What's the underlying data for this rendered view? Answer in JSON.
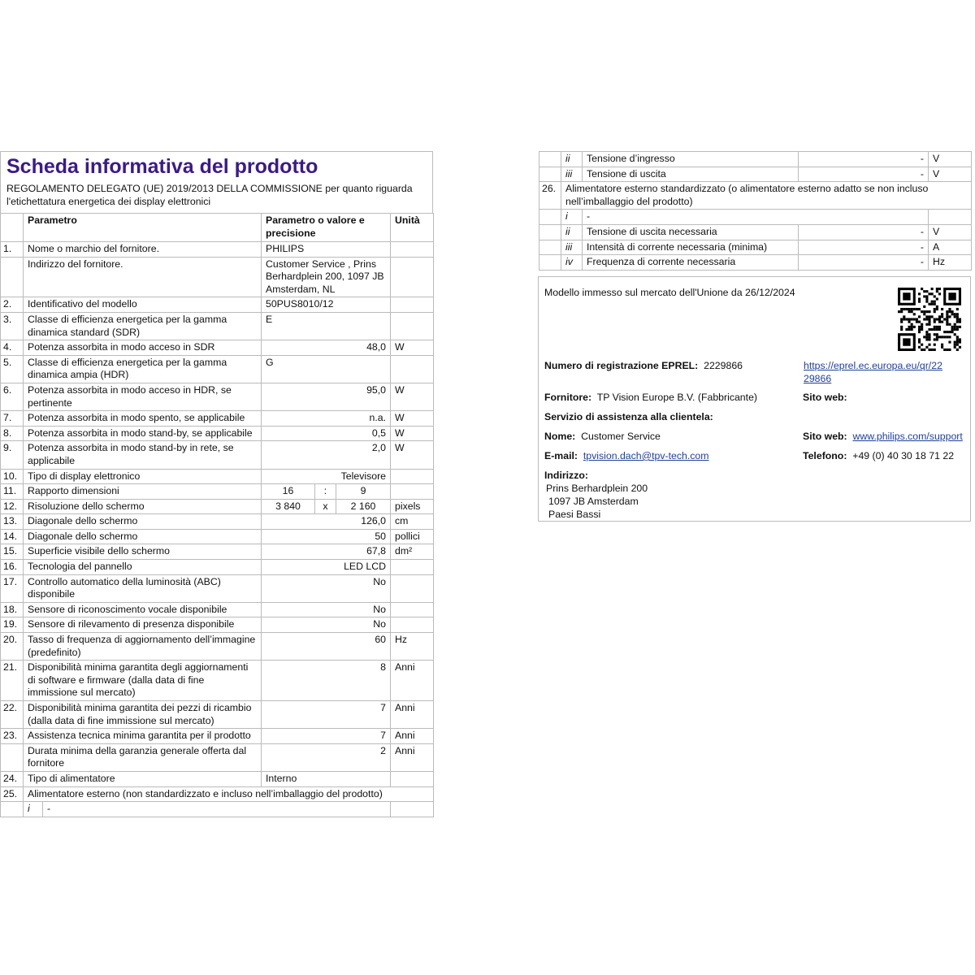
{
  "title": "Scheda informativa del prodotto",
  "subtitle": "REGOLAMENTO DELEGATO (UE) 2019/2013 DELLA COMMISSIONE per quanto riguarda l'etichettatura energetica dei display elettronici",
  "table_header": {
    "parameter": "Parametro",
    "value": "Parametro o valore e precisione",
    "unit": "Unità"
  },
  "rows": [
    {
      "num": "1.",
      "param": "Nome o marchio del fornitore.",
      "value": "PHILIPS",
      "unit": "",
      "align": "left"
    },
    {
      "num": "",
      "param": "Indirizzo del fornitore.",
      "value": "Customer Service , Prins Berhardplein 200, 1097 JB Amsterdam, NL",
      "unit": "",
      "align": "left"
    },
    {
      "num": "2.",
      "param": "Identificativo del modello",
      "value": "50PUS8010/12",
      "unit": "",
      "align": "left"
    },
    {
      "num": "3.",
      "param": "Classe di efficienza energetica per la gamma dinamica standard (SDR)",
      "value": "E",
      "unit": "",
      "align": "left"
    },
    {
      "num": "4.",
      "param": "Potenza assorbita in modo acceso in SDR",
      "value": "48,0",
      "unit": "W",
      "align": "right"
    },
    {
      "num": "5.",
      "param": "Classe di efficienza energetica per la gamma dinamica ampia (HDR)",
      "value": "G",
      "unit": "",
      "align": "left"
    },
    {
      "num": "6.",
      "param": "Potenza assorbita in modo acceso in HDR, se pertinente",
      "value": "95,0",
      "unit": "W",
      "align": "right"
    },
    {
      "num": "7.",
      "param": "Potenza assorbita in modo spento, se applicabile",
      "value": "n.a.",
      "unit": "W",
      "align": "right"
    },
    {
      "num": "8.",
      "param": "Potenza assorbita in modo stand-by, se applicabile",
      "value": "0,5",
      "unit": "W",
      "align": "right"
    },
    {
      "num": "9.",
      "param": "Potenza assorbita in modo stand-by in rete, se applicabile",
      "value": "2,0",
      "unit": "W",
      "align": "right"
    },
    {
      "num": "10.",
      "param": "Tipo di display elettronico",
      "value": "Televisore",
      "unit": "",
      "align": "right"
    },
    {
      "num": "11.",
      "param": "Rapporto dimensioni",
      "split": [
        "16",
        ":",
        "9"
      ],
      "unit": ""
    },
    {
      "num": "12.",
      "param": "Risoluzione dello schermo",
      "split": [
        "3 840",
        "x",
        "2 160"
      ],
      "unit": "pixels"
    },
    {
      "num": "13.",
      "param": "Diagonale dello schermo",
      "value": "126,0",
      "unit": "cm",
      "align": "right"
    },
    {
      "num": "14.",
      "param": "Diagonale dello schermo",
      "value": "50",
      "unit": "pollici",
      "align": "right"
    },
    {
      "num": "15.",
      "param": "Superficie visibile dello schermo",
      "value": "67,8",
      "unit": "dm²",
      "align": "right"
    },
    {
      "num": "16.",
      "param": "Tecnologia del pannello",
      "value": "LED LCD",
      "unit": "",
      "align": "right"
    },
    {
      "num": "17.",
      "param": "Controllo automatico della luminosità (ABC) disponibile",
      "value": "No",
      "unit": "",
      "align": "right"
    },
    {
      "num": "18.",
      "param": "Sensore di riconoscimento vocale disponibile",
      "value": "No",
      "unit": "",
      "align": "right"
    },
    {
      "num": "19.",
      "param": "Sensore di rilevamento di presenza disponibile",
      "value": "No",
      "unit": "",
      "align": "right"
    },
    {
      "num": "20.",
      "param": "Tasso di frequenza di aggiornamento dell’immagine (predefinito)",
      "value": "60",
      "unit": "Hz",
      "align": "right"
    },
    {
      "num": "21.",
      "param": "Disponibilità minima garantita degli aggiornamenti di software e firmware (dalla data di fine immissione sul mercato)",
      "value": "8",
      "unit": "Anni",
      "align": "right"
    },
    {
      "num": "22.",
      "param": "Disponibilità minima garantita dei pezzi di ricambio (dalla data di fine immissione sul mercato)",
      "value": "7",
      "unit": "Anni",
      "align": "right"
    },
    {
      "num": "23.",
      "param": "Assistenza tecnica minima garantita per il prodotto",
      "value": "7",
      "unit": "Anni",
      "align": "right"
    },
    {
      "num": "",
      "param": "Durata minima della garanzia generale offerta dal fornitore",
      "value": "2",
      "unit": "Anni",
      "align": "right"
    },
    {
      "num": "24.",
      "param": "Tipo di alimentatore",
      "value": "Interno",
      "unit": "",
      "align": "left"
    },
    {
      "num": "25.",
      "span": "Alimentatore esterno (non standardizzato e incluso nell’imballaggio del prodotto)"
    },
    {
      "num": "",
      "roman": "i",
      "dash": "-"
    }
  ],
  "right_rows": [
    {
      "roman": "ii",
      "label": "Tensione d’ingresso",
      "value": "-",
      "unit": "V"
    },
    {
      "roman": "iii",
      "label": "Tensione di uscita",
      "value": "-",
      "unit": "V"
    },
    {
      "num": "26.",
      "span": "Alimentatore esterno standardizzato (o alimentatore esterno adatto se non incluso nell’imballaggio del prodotto)"
    },
    {
      "roman": "i",
      "dash": "-"
    },
    {
      "roman": "ii",
      "label": "Tensione di uscita necessaria",
      "value": "-",
      "unit": "V"
    },
    {
      "roman": "iii",
      "label": "Intensità di corrente necessaria (minima)",
      "value": "-",
      "unit": "A"
    },
    {
      "roman": "iv",
      "label": "Frequenza di corrente necessaria",
      "value": "-",
      "unit": "Hz"
    }
  ],
  "info": {
    "market_date": "Modello immesso sul mercato dell'Unione da 26/12/2024",
    "eprel_label": "Numero di registrazione EPREL:",
    "eprel_value": "2229866",
    "eprel_url_1": "https://eprel.ec.europa.eu/qr/22",
    "eprel_url_2": "29866",
    "supplier_label": "Fornitore:",
    "supplier_value": "TP Vision Europe B.V. (Fabbricante)",
    "website_label": "Sito web:",
    "service_heading": "Servizio di assistenza alla clientela:",
    "name_label": "Nome:",
    "name_value": "Customer Service",
    "service_web_label": "Sito web:",
    "service_web_value": "www.philips.com/support",
    "email_label": "E-mail:",
    "email_value": "tpvision.dach@tpv-tech.com",
    "phone_label": "Telefono:",
    "phone_value": "+49 (0) 40 30 18 71 22",
    "address_label": "Indirizzo:",
    "address_lines": [
      "Prins Berhardplein 200",
      "1097 JB Amsterdam",
      "Paesi Bassi"
    ]
  },
  "colors": {
    "title": "#3a1a8c",
    "link": "#1f3f9c",
    "border": "#bbbbbb"
  }
}
